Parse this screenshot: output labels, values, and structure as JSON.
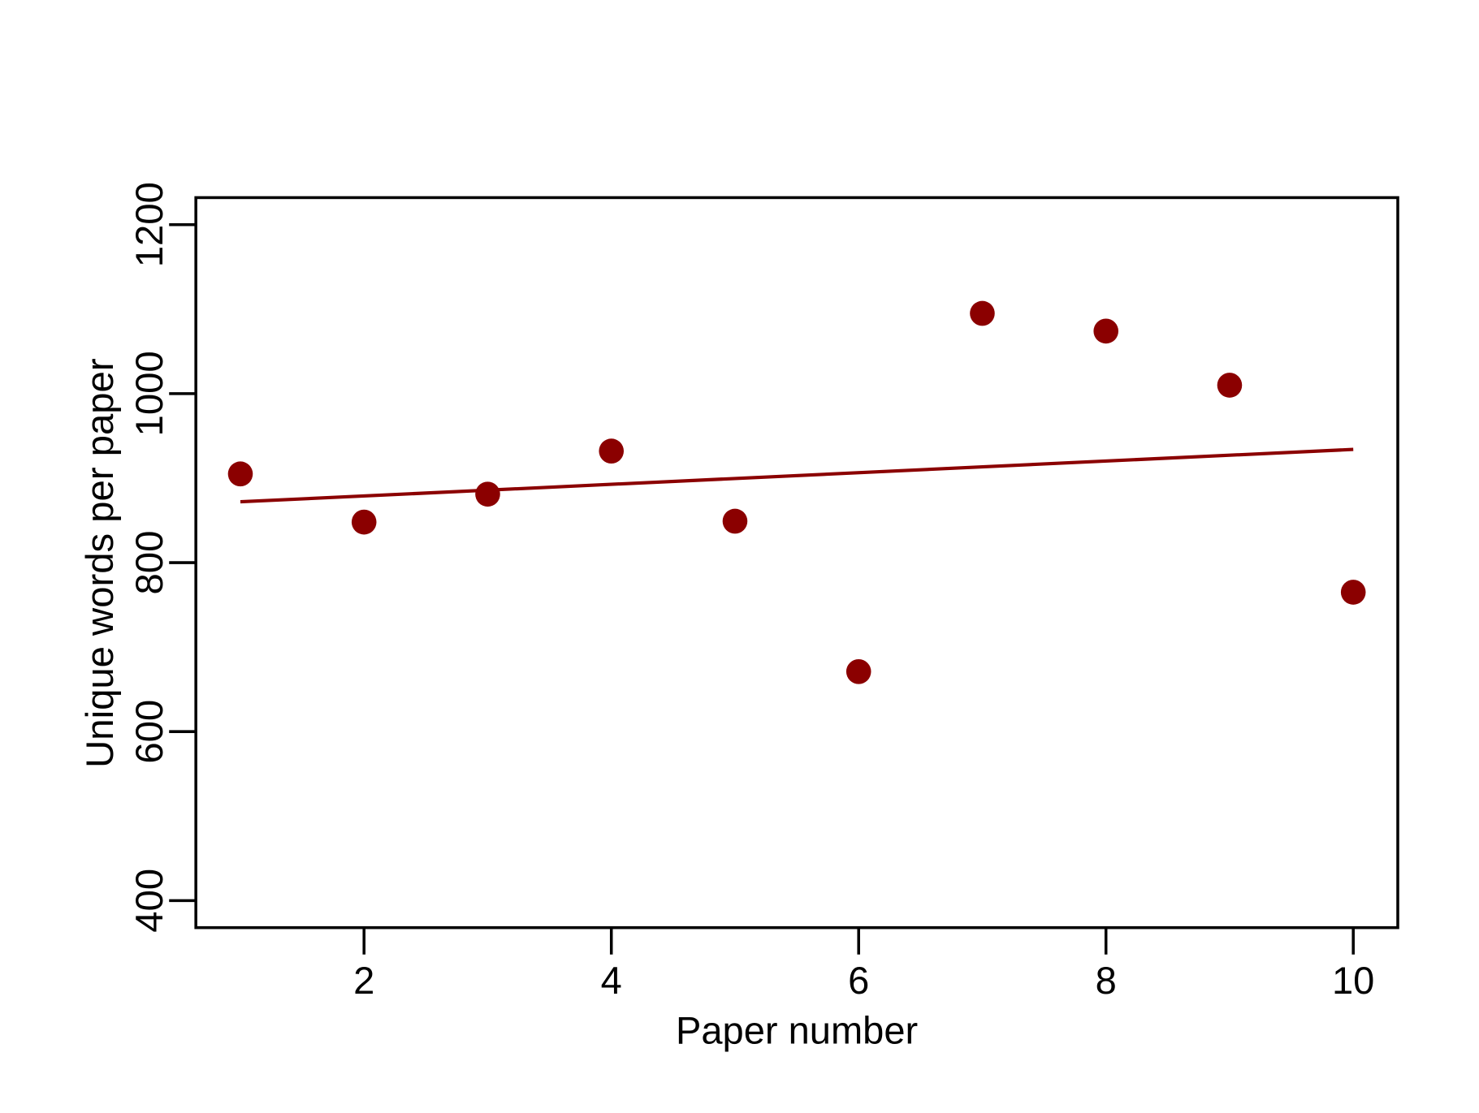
{
  "chart_data": {
    "type": "scatter",
    "x_label": "Paper number",
    "y_label": "Unique words per paper",
    "x": [
      1,
      2,
      3,
      4,
      5,
      6,
      7,
      8,
      9,
      10
    ],
    "series": [
      {
        "color": "#8b0000",
        "values": [
          905,
          848,
          881,
          932,
          849,
          671,
          1095,
          1074,
          1010,
          765
        ]
      }
    ],
    "trend": {
      "color": "#8b0000",
      "x": [
        1,
        10
      ],
      "values": [
        872,
        934
      ]
    },
    "xlim": [
      0.64,
      10.36
    ],
    "xticks": [
      2,
      4,
      6,
      8,
      10
    ],
    "ylim": [
      368,
      1232
    ],
    "yticks": [
      400,
      600,
      800,
      1000,
      1200
    ]
  }
}
